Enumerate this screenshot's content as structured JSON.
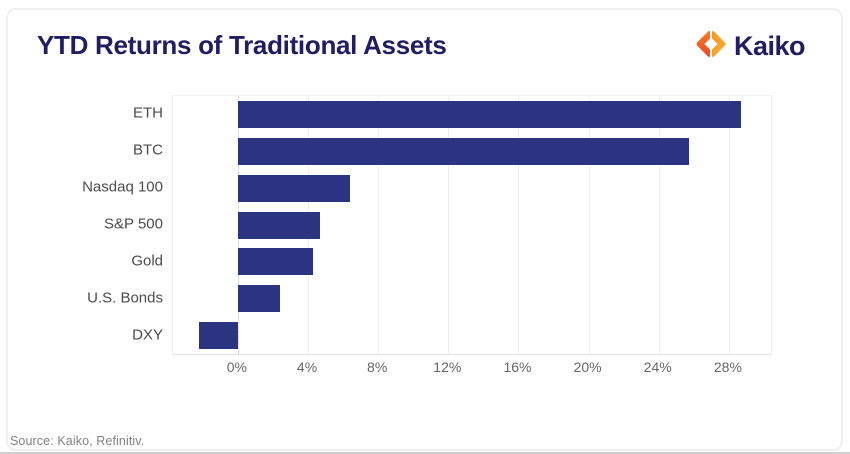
{
  "header": {
    "title": "YTD Returns of Traditional Assets",
    "logo_text": "Kaiko"
  },
  "footer": {
    "source": "Source: Kaiko, Refinitiv."
  },
  "colors": {
    "bar": "#2b3480",
    "title": "#201d63",
    "logo_left": "#ef4823",
    "logo_left2": "#f47b20",
    "logo_right": "#f7941d",
    "logo_right2": "#fbb03b"
  },
  "chart_data": {
    "type": "bar",
    "orientation": "horizontal",
    "title": "YTD Returns of Traditional Assets",
    "xlabel": "",
    "ylabel": "",
    "categories": [
      "ETH",
      "BTC",
      "Nasdaq 100",
      "S&P 500",
      "Gold",
      "U.S. Bonds",
      "DXY"
    ],
    "values": [
      28.7,
      25.7,
      6.4,
      4.7,
      4.3,
      2.4,
      -2.2
    ],
    "unit": "%",
    "xlim": [
      -3.7,
      30.4
    ],
    "xticks": [
      0,
      4,
      8,
      12,
      16,
      20,
      24,
      28
    ],
    "xtick_labels": [
      "0%",
      "4%",
      "8%",
      "12%",
      "16%",
      "20%",
      "24%",
      "28%"
    ],
    "grid": true,
    "zero_line": "dashed",
    "legend": false
  }
}
